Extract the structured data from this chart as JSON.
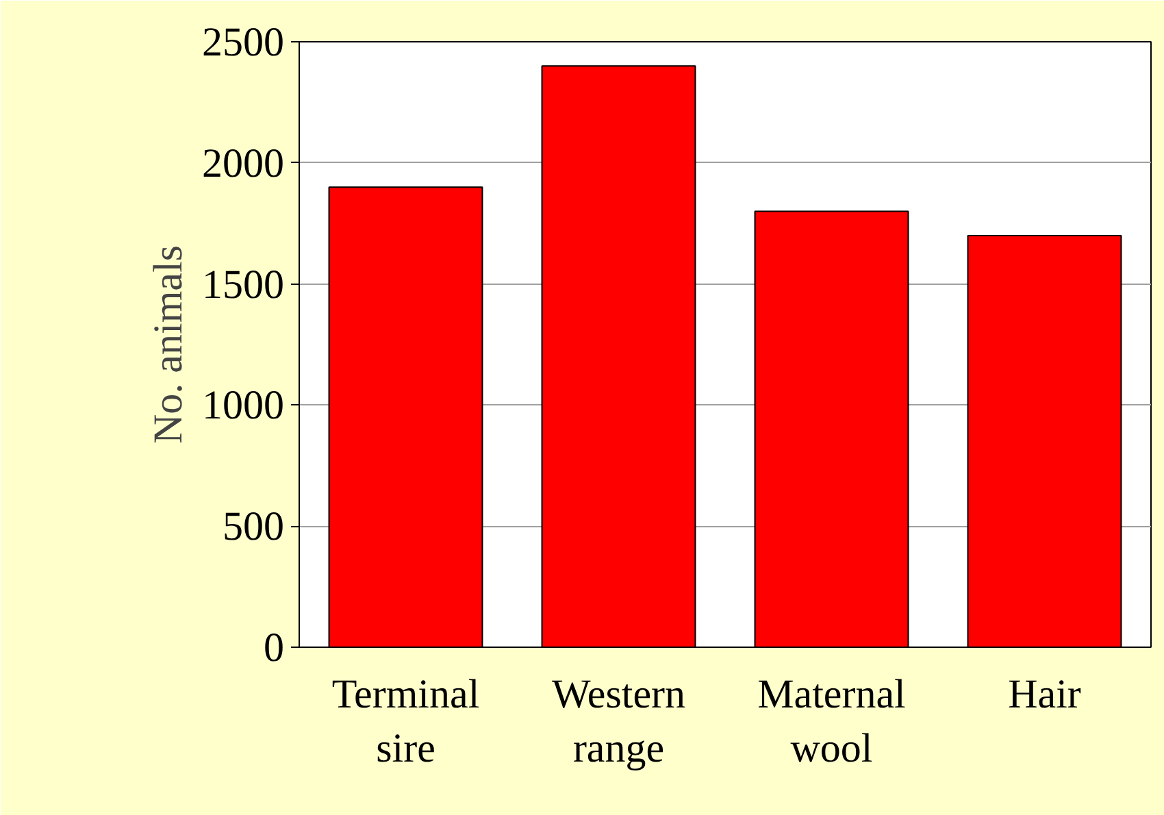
{
  "chart_data": {
    "type": "bar",
    "ylabel": "No. animals",
    "categories": [
      "Terminal sire",
      "Western range",
      "Maternal wool",
      "Hair"
    ],
    "values": [
      1900,
      2400,
      1800,
      1700
    ],
    "color": "#ff0000",
    "ylim": [
      0,
      2500
    ],
    "yticks": [
      0,
      500,
      1000,
      1500,
      2000,
      2500
    ],
    "grid": "y"
  }
}
